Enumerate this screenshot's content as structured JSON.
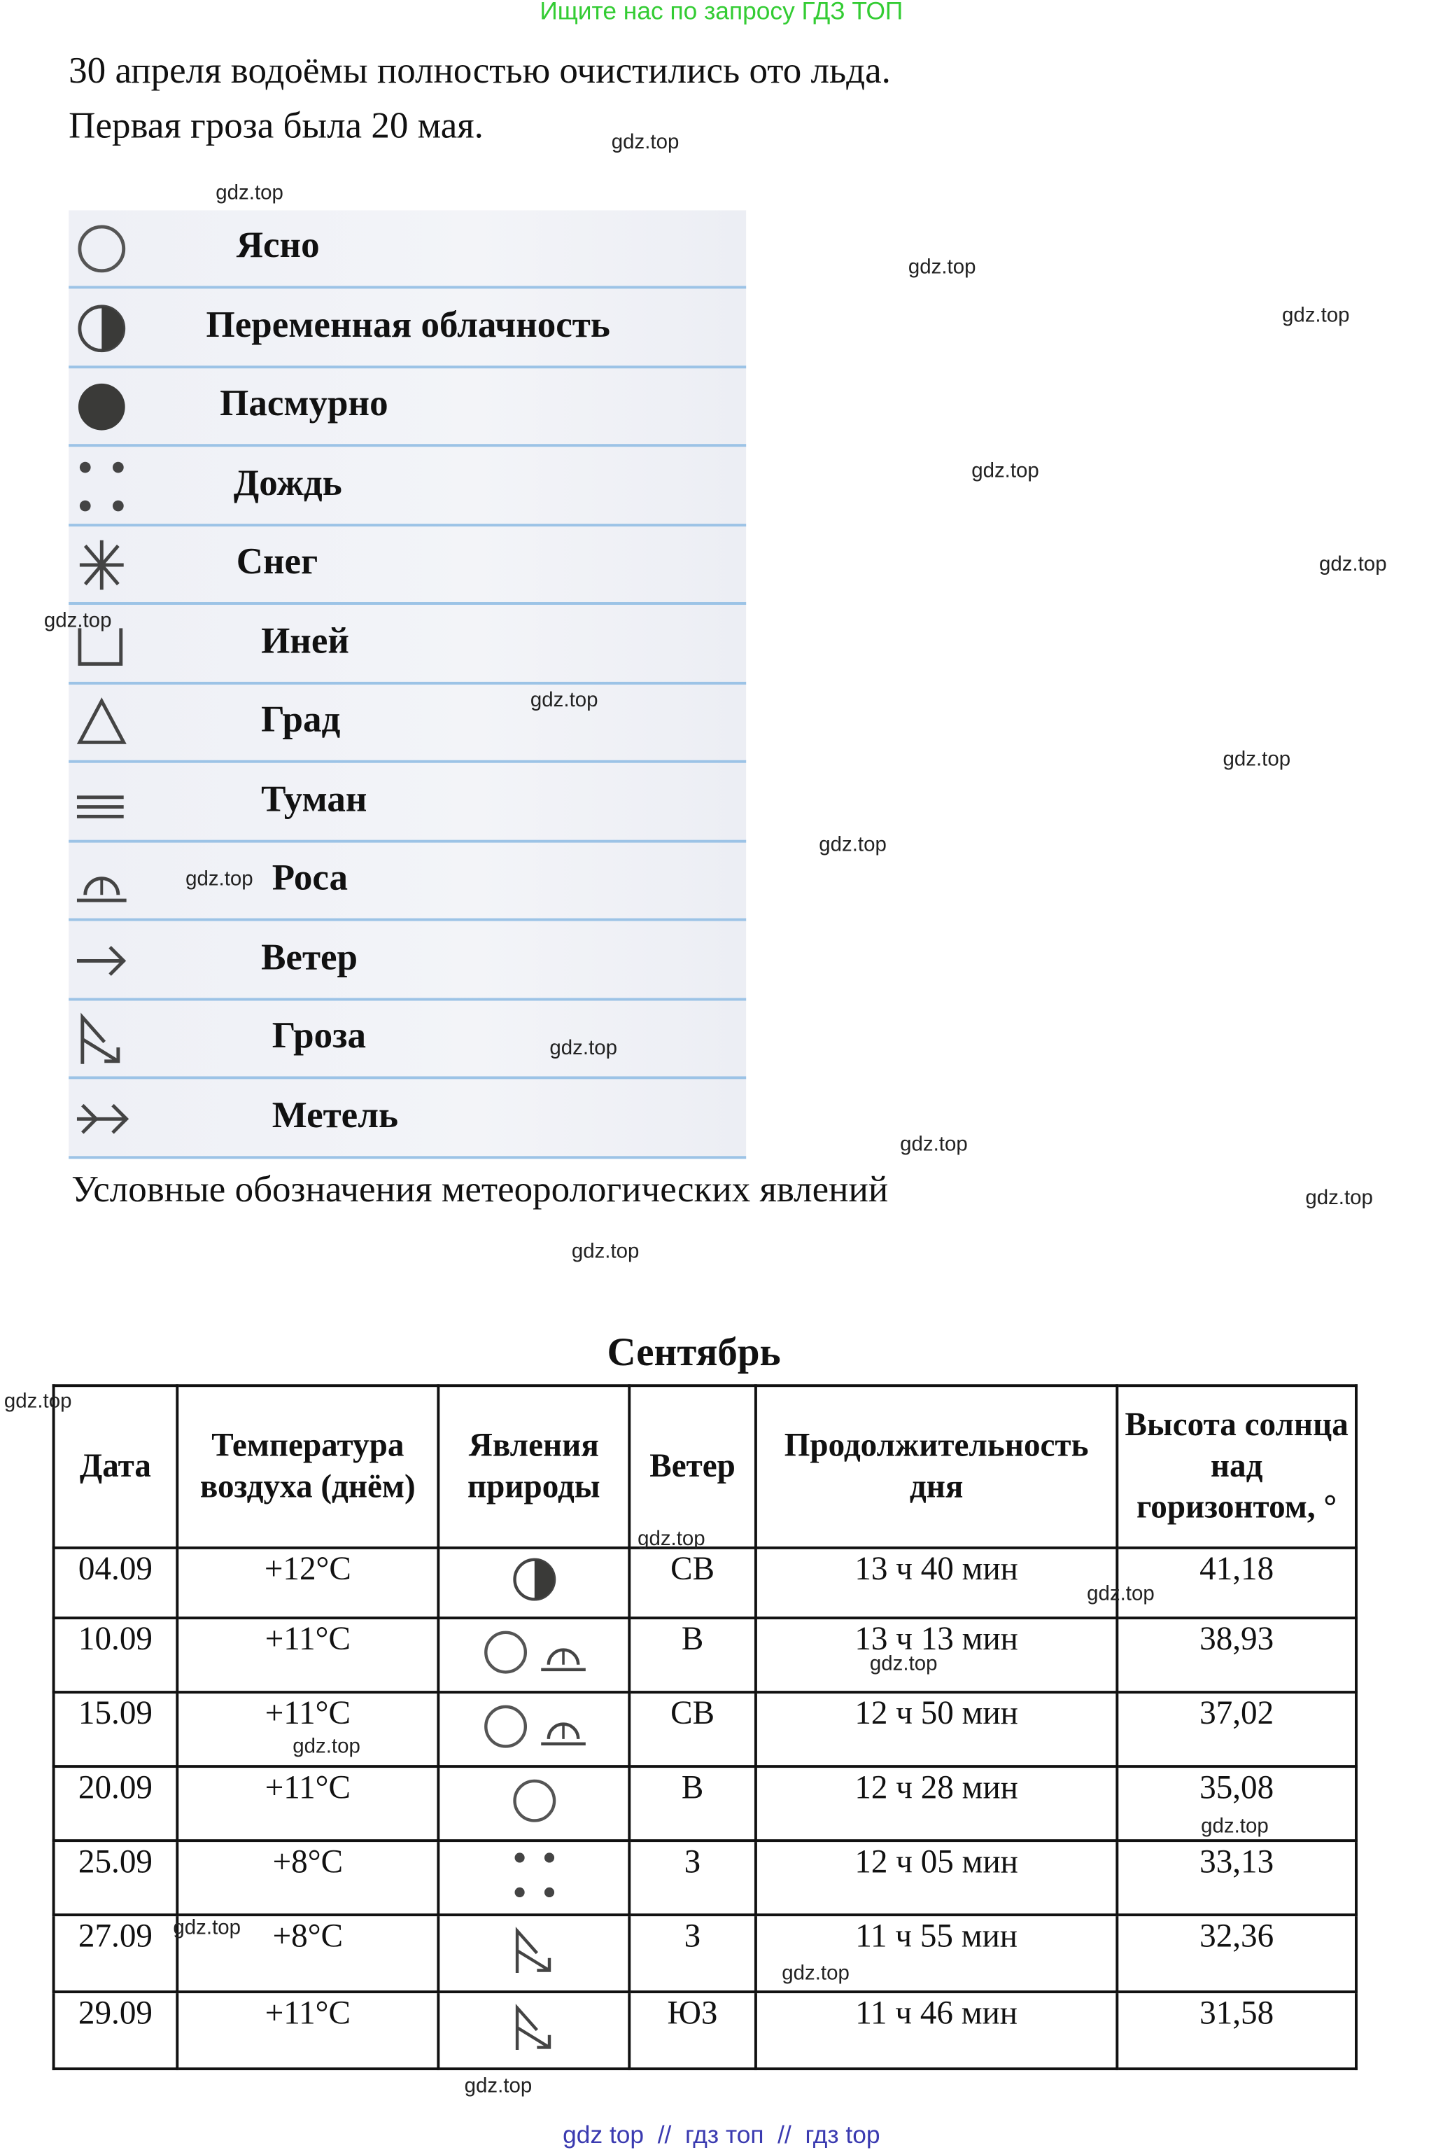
{
  "banner": "Ищите нас по запросу ГДЗ ТОП",
  "intro": [
    "30 апреля водоёмы полностью очистились ото льда.",
    "Первая гроза была 20 мая."
  ],
  "legend": {
    "items": [
      {
        "icon": "clear-circle-icon",
        "label": "Ясно"
      },
      {
        "icon": "half-filled-circle-icon",
        "label": "Переменная облачность"
      },
      {
        "icon": "filled-circle-icon",
        "label": "Пасмурно"
      },
      {
        "icon": "rain-dots-icon",
        "label": "Дождь"
      },
      {
        "icon": "snow-asterisk-icon",
        "label": "Снег"
      },
      {
        "icon": "frost-bracket-icon",
        "label": "Иней"
      },
      {
        "icon": "hail-triangle-icon",
        "label": "Град"
      },
      {
        "icon": "fog-lines-icon",
        "label": "Туман"
      },
      {
        "icon": "dew-icon",
        "label": "Роса"
      },
      {
        "icon": "wind-arrow-icon",
        "label": "Ветер"
      },
      {
        "icon": "thunderstorm-icon",
        "label": "Гроза"
      },
      {
        "icon": "blizzard-icon",
        "label": "Метель"
      }
    ],
    "caption": "Условные обозначения метеорологических явлений"
  },
  "table": {
    "title": "Сентябрь",
    "headers": [
      "Дата",
      "Температура воздуха (днём)",
      "Явления природы",
      "Ветер",
      "Продолжительность дня",
      "Высота солнца над горизонтом, °"
    ],
    "rows": [
      {
        "date": "04.09",
        "temp": "+12°C",
        "phenomena": [
          "half-filled-circle-icon"
        ],
        "wind": "СВ",
        "day": "13 ч 40 мин",
        "sun": "41,18"
      },
      {
        "date": "10.09",
        "temp": "+11°C",
        "phenomena": [
          "clear-circle-icon",
          "dew-icon"
        ],
        "wind": "В",
        "day": "13 ч 13 мин",
        "sun": "38,93"
      },
      {
        "date": "15.09",
        "temp": "+11°C",
        "phenomena": [
          "clear-circle-icon",
          "dew-icon"
        ],
        "wind": "СВ",
        "day": "12 ч 50 мин",
        "sun": "37,02"
      },
      {
        "date": "20.09",
        "temp": "+11°C",
        "phenomena": [
          "clear-circle-icon"
        ],
        "wind": "В",
        "day": "12 ч 28 мин",
        "sun": "35,08"
      },
      {
        "date": "25.09",
        "temp": "+8°C",
        "phenomena": [
          "rain-dots-icon"
        ],
        "wind": "З",
        "day": "12 ч 05 мин",
        "sun": "33,13"
      },
      {
        "date": "27.09",
        "temp": "+8°C",
        "phenomena": [
          "thunderstorm-icon"
        ],
        "wind": "З",
        "day": "11 ч 55 мин",
        "sun": "32,36"
      },
      {
        "date": "29.09",
        "temp": "+11°C",
        "phenomena": [
          "thunderstorm-icon"
        ],
        "wind": "ЮЗ",
        "day": "11 ч 46 мин",
        "sun": "31,58"
      }
    ]
  },
  "watermark": "gdz.top",
  "footer": "gdz top  //  гдз топ  //  гдз top",
  "colors": {
    "banner": "#33cc33",
    "footer": "#3a3ab0",
    "legend_line": "#9cc3e6"
  }
}
